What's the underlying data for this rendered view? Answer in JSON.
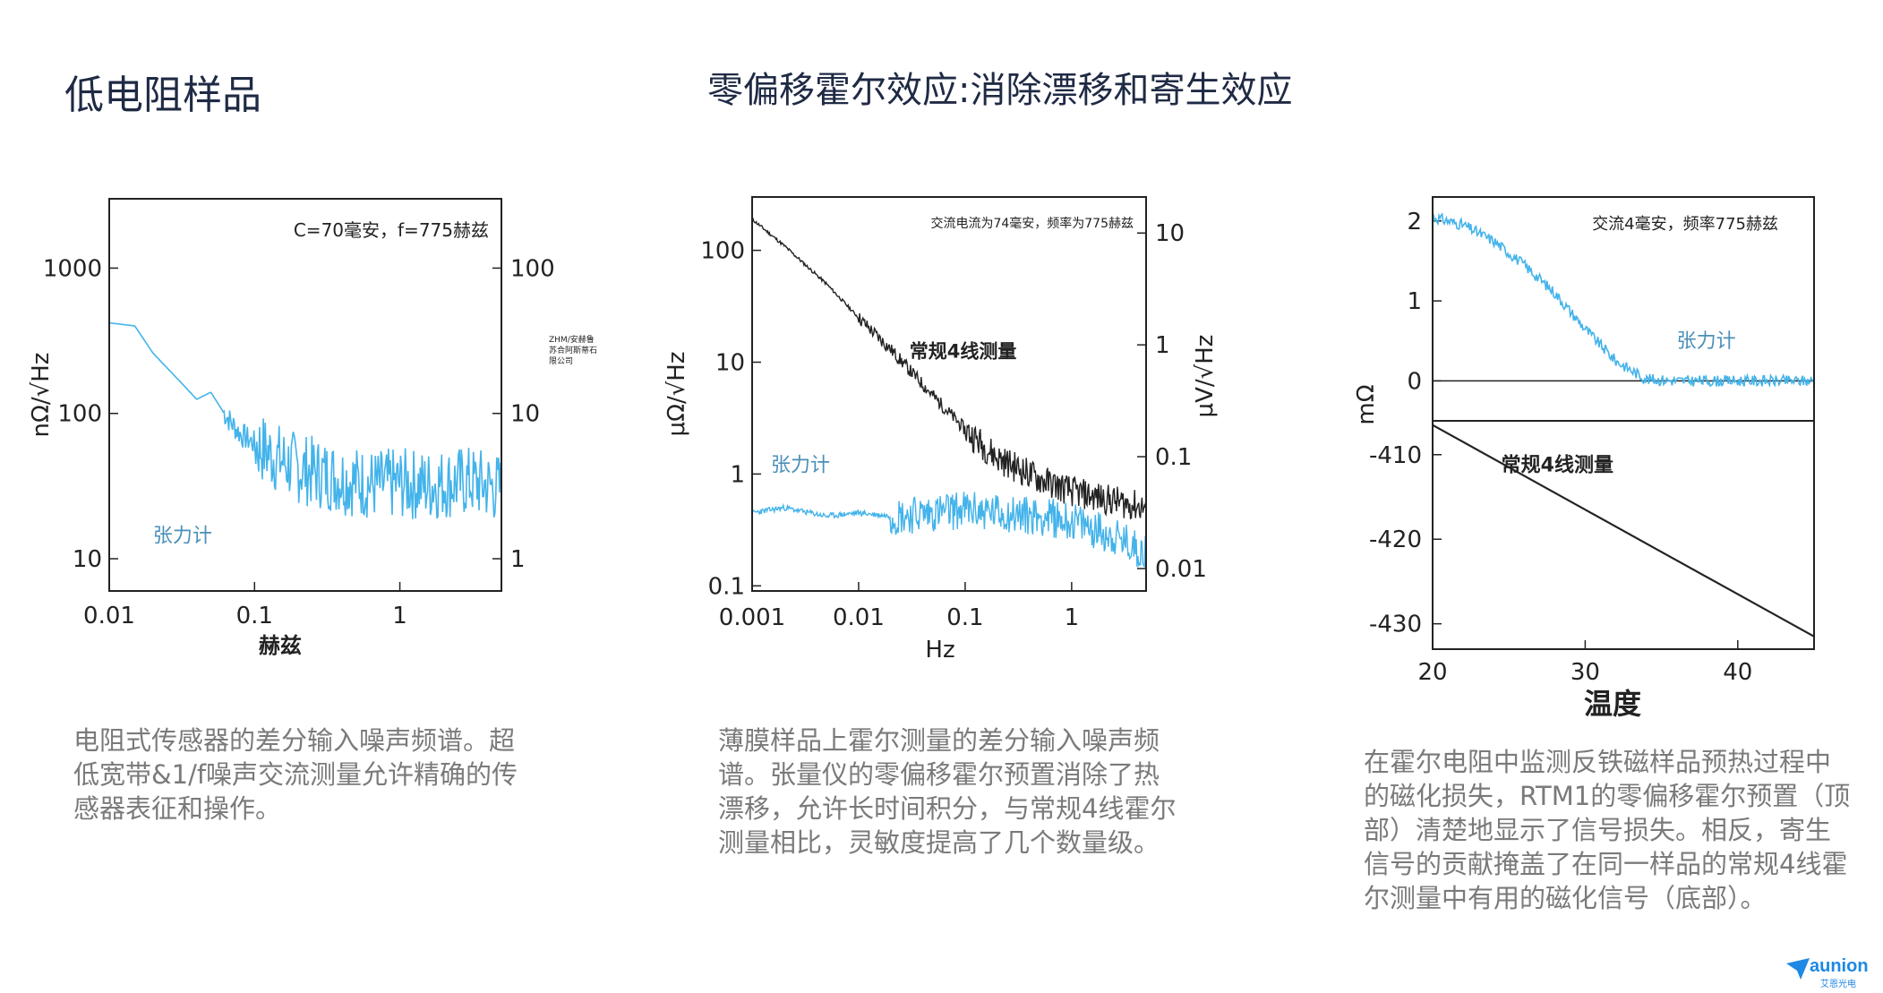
{
  "page": {
    "title_left": "低电阻样品",
    "title_center": "零偏移霍尔效应:消除漂移和寄生效应",
    "caption_1": "电阻式传感器的差分输入噪声频谱。超低宽带&1/f噪声交流测量允许精确的传感器表征和操作。",
    "caption_2": "薄膜样品上霍尔测量的差分输入噪声频谱。张量仪的零偏移霍尔预置消除了热漂移，允许长时间积分，与常规4线霍尔测量相比，灵敏度提高了几个数量级。",
    "caption_3": "在霍尔电阻中监测反铁磁样品预热过程中的磁化损失，RTM1的零偏移霍尔预置（顶部）清楚地显示了信号损失。相反，寄生信号的贡献掩盖了在同一样品的常规4线霍尔测量中有用的磁化信号（底部）。",
    "logo_text": "aunion",
    "logo_sub": "艾恩光电",
    "brand_color": "#1e88e5"
  },
  "chart_data": [
    {
      "type": "line",
      "annotation": "C=70毫安，f=775赫兹",
      "side_note": "ZHM/安赫鲁\n苏合阿斯蒂石\n限公司",
      "xlabel": "赫兹",
      "ylabel": "nΩ/√Hz",
      "x_scale": "log",
      "y_scale": "log",
      "xlim": [
        0.01,
        5
      ],
      "ylim": [
        6,
        3000
      ],
      "x_ticks": [
        0.01,
        0.1,
        1
      ],
      "x_tick_labels": [
        "0.01",
        "0.1",
        "1"
      ],
      "y_ticks": [
        10,
        100,
        1000
      ],
      "y_tick_labels": [
        "10",
        "100",
        "1000"
      ],
      "y2_ticks": [
        1,
        10,
        100
      ],
      "y2_tick_labels": [
        "1",
        "10",
        "100"
      ],
      "y2_factor": 0.1,
      "series": [
        {
          "name": "张力计",
          "color": "#43b3ea",
          "x": [
            0.01,
            0.015,
            0.02,
            0.03,
            0.04,
            0.05,
            0.06,
            0.07,
            0.08,
            0.1,
            0.13,
            0.17,
            0.2,
            0.3,
            0.5,
            0.7,
            1,
            1.5,
            2,
            3,
            4,
            5
          ],
          "y": [
            420,
            400,
            260,
            170,
            125,
            140,
            105,
            85,
            72,
            62,
            52,
            45,
            42,
            38,
            34,
            32,
            33,
            32,
            33,
            34,
            32,
            30
          ],
          "noise_start_x": 0.1
        }
      ]
    },
    {
      "type": "line",
      "annotation": "交流电流为74毫安，频率为775赫兹",
      "xlabel": "Hz",
      "ylabel": "μΩ/√Hz",
      "y2label": "μV/√Hz",
      "x_scale": "log",
      "y_scale": "log",
      "xlim": [
        0.001,
        5
      ],
      "ylim": [
        0.09,
        300
      ],
      "x_ticks": [
        0.001,
        0.01,
        0.1,
        1
      ],
      "x_tick_labels": [
        "0.001",
        "0.01",
        "0.1",
        "1"
      ],
      "y_ticks": [
        0.1,
        1,
        10,
        100
      ],
      "y_tick_labels": [
        "0.1",
        "1",
        "10",
        "100"
      ],
      "y2_ticks": [
        0.01,
        0.1,
        1,
        10
      ],
      "y2_tick_labels": [
        "0.01",
        "0.1",
        "1",
        "10"
      ],
      "y2_factor": 0.07,
      "series": [
        {
          "name": "常规4线测量",
          "color": "#222222",
          "x": [
            0.001,
            0.002,
            0.005,
            0.01,
            0.02,
            0.05,
            0.1,
            0.2,
            0.5,
            1,
            2,
            5
          ],
          "y": [
            190,
            110,
            50,
            25,
            13,
            5,
            2.5,
            1.4,
            0.9,
            0.7,
            0.6,
            0.5
          ]
        },
        {
          "name": "张力计",
          "color": "#43b3ea",
          "x": [
            0.001,
            0.002,
            0.005,
            0.01,
            0.02,
            0.05,
            0.1,
            0.2,
            0.5,
            1,
            2,
            5
          ],
          "y": [
            0.45,
            0.5,
            0.42,
            0.45,
            0.42,
            0.45,
            0.48,
            0.45,
            0.42,
            0.38,
            0.3,
            0.2
          ]
        }
      ]
    },
    {
      "type": "line",
      "panel": "top",
      "annotation": "交流4毫安，频率775赫兹",
      "ylabel": "mΩ",
      "xlim": [
        20,
        45
      ],
      "ylim": [
        -0.5,
        2.3
      ],
      "y_ticks": [
        0,
        1,
        2
      ],
      "y_tick_labels": [
        "0",
        "1",
        "2"
      ],
      "series": [
        {
          "name": "张力计",
          "color": "#43b3ea",
          "x": [
            20,
            22,
            24,
            26,
            28,
            30,
            32,
            34,
            36,
            38,
            40,
            42,
            45
          ],
          "y": [
            2.05,
            1.95,
            1.75,
            1.45,
            1.1,
            0.65,
            0.25,
            0.02,
            0,
            0,
            0,
            0,
            0
          ]
        }
      ]
    },
    {
      "type": "line",
      "panel": "bottom",
      "xlabel": "温度",
      "ylabel": "mΩ",
      "xlim": [
        20,
        45
      ],
      "ylim": [
        -433,
        -406
      ],
      "x_ticks": [
        20,
        30,
        40
      ],
      "x_tick_labels": [
        "20",
        "30",
        "40"
      ],
      "y_ticks": [
        -410,
        -420,
        -430
      ],
      "y_tick_labels": [
        "-410",
        "-420",
        "-430"
      ],
      "series": [
        {
          "name": "常规4线测量",
          "color": "#222222",
          "x": [
            20,
            25,
            30,
            35,
            40,
            45
          ],
          "y": [
            -406.5,
            -411.5,
            -416.5,
            -421.5,
            -426.5,
            -431.5
          ]
        }
      ]
    }
  ]
}
